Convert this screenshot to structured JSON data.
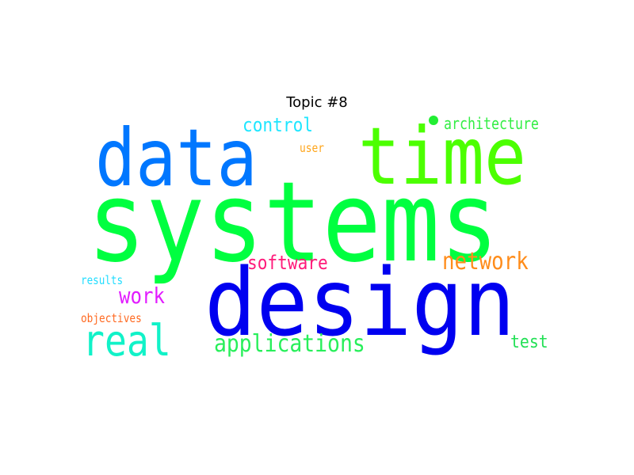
{
  "title": "Topic #8",
  "words": [
    {
      "text": "systems",
      "color": "#00ff40"
    },
    {
      "text": "design",
      "color": "#0000f0"
    },
    {
      "text": "data",
      "color": "#0077ff"
    },
    {
      "text": "time",
      "color": "#4cff00"
    },
    {
      "text": "real",
      "color": "#11f2c8"
    },
    {
      "text": "applications",
      "color": "#28ef5a"
    },
    {
      "text": "network",
      "color": "#ff8c1a"
    },
    {
      "text": "software",
      "color": "#ff1a7a"
    },
    {
      "text": "work",
      "color": "#e21cff"
    },
    {
      "text": "control",
      "color": "#1fe6ff"
    },
    {
      "text": "architecture",
      "color": "#33ee44"
    },
    {
      "text": "test",
      "color": "#22e055"
    },
    {
      "text": "user",
      "color": "#ffa51a"
    },
    {
      "text": "results",
      "color": "#22ddff"
    },
    {
      "text": "objectives",
      "color": "#ff6a22"
    }
  ]
}
